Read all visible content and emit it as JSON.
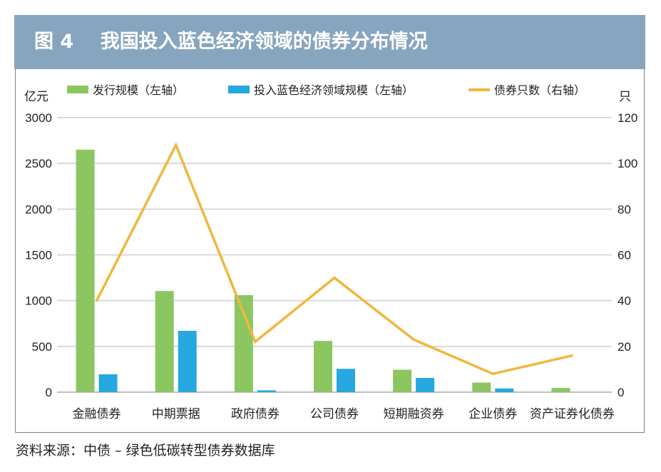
{
  "header": {
    "title": "图 4    我国投入蓝色经济领域的债券分布情况"
  },
  "source": "资料来源：中债 – 绿色低碳转型债券数据库",
  "colors": {
    "issue": "#8BC661",
    "blue_econ": "#26A7E0",
    "count": "#F0B73C",
    "header_bg": "#87A5BF",
    "grid": "#d9d9d9"
  },
  "chart_data": {
    "type": "bar",
    "categories": [
      "金融债券",
      "中期票据",
      "政府债券",
      "公司债券",
      "短期融资券",
      "企业债券",
      "资产证券化债券"
    ],
    "series": [
      {
        "name": "发行规模（左轴）",
        "kind": "bar",
        "axis": "left",
        "values": [
          2650,
          1105,
          1060,
          560,
          245,
          105,
          45
        ]
      },
      {
        "name": "投入蓝色经济领域规模（左轴）",
        "kind": "bar",
        "axis": "left",
        "values": [
          195,
          670,
          20,
          255,
          155,
          40,
          0
        ]
      },
      {
        "name": "债券只数（右轴）",
        "kind": "line",
        "axis": "right",
        "values": [
          40,
          108,
          22,
          50,
          23,
          8,
          16
        ]
      }
    ],
    "left_axis": {
      "unit": "亿元",
      "ylim": [
        0,
        3000
      ],
      "ticks": [
        "0",
        "500",
        "1000",
        "1500",
        "2000",
        "2500",
        "3000"
      ]
    },
    "right_axis": {
      "unit": "只",
      "ylim": [
        0,
        120
      ],
      "ticks": [
        "0",
        "20",
        "40",
        "60",
        "80",
        "100",
        "120"
      ]
    },
    "grid": true,
    "legend_position": "top"
  }
}
